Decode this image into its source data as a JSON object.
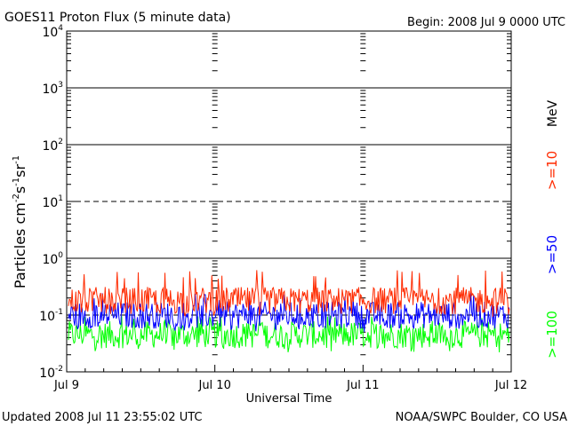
{
  "header": {
    "title": "GOES11 Proton Flux (5 minute data)",
    "begin": "Begin: 2008 Jul 9 0000 UTC"
  },
  "footer": {
    "updated": "Updated 2008 Jul 11 23:55:02 UTC",
    "source": "NOAA/SWPC Boulder, CO USA"
  },
  "chart_data": {
    "type": "line",
    "title": "GOES11 Proton Flux (5 minute data)",
    "xlabel": "Universal Time",
    "ylabel": "Particles cm-2 s-1 sr-1",
    "yscale": "log",
    "ylim": [
      0.01,
      10000
    ],
    "y_ticks": [
      {
        "value": 0.01,
        "base": "10",
        "exp": "-2"
      },
      {
        "value": 0.1,
        "base": "10",
        "exp": "-1"
      },
      {
        "value": 1,
        "base": "10",
        "exp": "0"
      },
      {
        "value": 10,
        "base": "10",
        "exp": "1"
      },
      {
        "value": 100,
        "base": "10",
        "exp": "2"
      },
      {
        "value": 1000,
        "base": "10",
        "exp": "3"
      },
      {
        "value": 10000,
        "base": "10",
        "exp": "4"
      }
    ],
    "solid_gridlines": [
      1,
      100,
      1000
    ],
    "dashed_gridlines": [
      0.1,
      10
    ],
    "xlim": [
      "2008-07-09",
      "2008-07-12"
    ],
    "x_ticks": [
      "Jul 9",
      "Jul 10",
      "Jul 11",
      "Jul 12"
    ],
    "energy_unit": "MeV",
    "series": [
      {
        "name": ">=10",
        "color": "#ff2a00",
        "typical": 0.18,
        "min": 0.09,
        "max": 0.62
      },
      {
        "name": ">=50",
        "color": "#0000ff",
        "typical": 0.1,
        "min": 0.05,
        "max": 0.25
      },
      {
        "name": ">=100",
        "color": "#00ff00",
        "typical": 0.045,
        "min": 0.022,
        "max": 0.1
      }
    ]
  }
}
